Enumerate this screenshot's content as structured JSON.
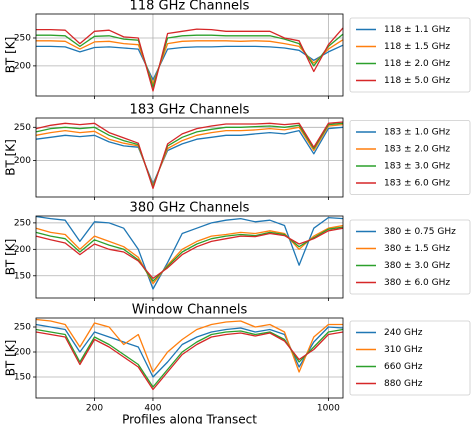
{
  "chart_data": [
    {
      "type": "line",
      "title": "118 GHz Channels",
      "ylabel": "BT [K]",
      "x": [
        0,
        50,
        100,
        150,
        200,
        250,
        300,
        350,
        400,
        450,
        500,
        550,
        600,
        650,
        700,
        750,
        800,
        850,
        900,
        950,
        1000,
        1050
      ],
      "xlim": [
        0,
        1050
      ],
      "ylim": [
        146,
        293
      ],
      "yticks": [
        200,
        250
      ],
      "grid": true,
      "series": [
        {
          "name": "118 ± 1.1 GHz",
          "color": "#1f77b4",
          "values": [
            235,
            235,
            234,
            225,
            233,
            234,
            232,
            230,
            175,
            230,
            233,
            234,
            234,
            235,
            235,
            235,
            234,
            232,
            228,
            210,
            225,
            237
          ]
        },
        {
          "name": "118 ± 1.5 GHz",
          "color": "#ff7f0e",
          "values": [
            245,
            245,
            244,
            230,
            243,
            244,
            240,
            238,
            168,
            240,
            244,
            245,
            245,
            245,
            244,
            245,
            244,
            240,
            235,
            205,
            230,
            247
          ]
        },
        {
          "name": "118 ± 2.0 GHz",
          "color": "#2ca02c",
          "values": [
            255,
            255,
            254,
            235,
            253,
            254,
            248,
            246,
            162,
            250,
            254,
            255,
            255,
            254,
            254,
            254,
            254,
            248,
            240,
            200,
            235,
            257
          ]
        },
        {
          "name": "118 ± 5.0 GHz",
          "color": "#d62728",
          "values": [
            265,
            265,
            264,
            240,
            262,
            264,
            252,
            250,
            155,
            258,
            262,
            266,
            265,
            262,
            262,
            262,
            262,
            250,
            245,
            190,
            238,
            268
          ]
        }
      ]
    },
    {
      "type": "line",
      "title": "183 GHz Channels",
      "ylabel": "BT [K]",
      "x": [
        0,
        50,
        100,
        150,
        200,
        250,
        300,
        350,
        400,
        450,
        500,
        550,
        600,
        650,
        700,
        750,
        800,
        850,
        900,
        950,
        1000,
        1050
      ],
      "xlim": [
        0,
        1050
      ],
      "ylim": [
        145,
        264
      ],
      "yticks": [
        200,
        250
      ],
      "grid": true,
      "series": [
        {
          "name": "183 ± 1.0 GHz",
          "color": "#1f77b4",
          "values": [
            232,
            235,
            238,
            236,
            238,
            228,
            222,
            220,
            165,
            215,
            225,
            232,
            235,
            238,
            238,
            240,
            242,
            240,
            245,
            210,
            248,
            250
          ]
        },
        {
          "name": "183 ± 2.0 GHz",
          "color": "#ff7f0e",
          "values": [
            238,
            242,
            245,
            242,
            244,
            232,
            226,
            222,
            162,
            218,
            230,
            238,
            242,
            245,
            245,
            246,
            248,
            246,
            250,
            215,
            252,
            254
          ]
        },
        {
          "name": "183 ± 3.0 GHz",
          "color": "#2ca02c",
          "values": [
            243,
            248,
            250,
            248,
            250,
            238,
            230,
            224,
            160,
            222,
            235,
            243,
            247,
            250,
            250,
            251,
            252,
            250,
            253,
            218,
            254,
            256
          ]
        },
        {
          "name": "183 ± 6.0 GHz",
          "color": "#d62728",
          "values": [
            248,
            253,
            256,
            254,
            256,
            242,
            234,
            226,
            158,
            225,
            240,
            248,
            252,
            255,
            255,
            255,
            256,
            254,
            256,
            220,
            256,
            258
          ]
        }
      ]
    },
    {
      "type": "line",
      "title": "380 GHz Channels",
      "ylabel": "BT [K]",
      "x": [
        0,
        50,
        100,
        150,
        200,
        250,
        300,
        350,
        400,
        450,
        500,
        550,
        600,
        650,
        700,
        750,
        800,
        850,
        900,
        950,
        1000,
        1050
      ],
      "xlim": [
        0,
        1050
      ],
      "ylim": [
        108,
        263
      ],
      "yticks": [
        150,
        200,
        250
      ],
      "grid": true,
      "series": [
        {
          "name": "380 ± 0.75 GHz",
          "color": "#1f77b4",
          "values": [
            262,
            258,
            255,
            215,
            252,
            250,
            240,
            200,
            125,
            175,
            230,
            240,
            250,
            255,
            258,
            252,
            255,
            245,
            170,
            240,
            260,
            258
          ]
        },
        {
          "name": "380 ± 1.5 GHz",
          "color": "#ff7f0e",
          "values": [
            240,
            232,
            228,
            200,
            225,
            215,
            205,
            185,
            135,
            170,
            200,
            215,
            225,
            228,
            232,
            230,
            235,
            230,
            200,
            225,
            240,
            245
          ]
        },
        {
          "name": "380 ± 3.0 GHz",
          "color": "#2ca02c",
          "values": [
            232,
            225,
            220,
            195,
            218,
            208,
            200,
            180,
            140,
            168,
            195,
            210,
            220,
            225,
            228,
            226,
            232,
            228,
            205,
            222,
            238,
            242
          ]
        },
        {
          "name": "380 ± 6.0 GHz",
          "color": "#d62728",
          "values": [
            225,
            218,
            212,
            190,
            210,
            200,
            195,
            178,
            145,
            165,
            190,
            205,
            215,
            220,
            225,
            224,
            230,
            226,
            210,
            220,
            235,
            240
          ]
        }
      ]
    },
    {
      "type": "line",
      "title": "Window Channels",
      "ylabel": "BT [K]",
      "xlabel": "Profiles along Transect",
      "x": [
        0,
        50,
        100,
        150,
        200,
        250,
        300,
        350,
        400,
        450,
        500,
        550,
        600,
        650,
        700,
        750,
        800,
        850,
        900,
        950,
        1000,
        1050
      ],
      "xlim": [
        0,
        1050
      ],
      "xticks": [
        200,
        400,
        1000
      ],
      "ylim": [
        108,
        268
      ],
      "yticks": [
        150,
        200,
        250
      ],
      "grid": true,
      "series": [
        {
          "name": "240 GHz",
          "color": "#1f77b4",
          "values": [
            255,
            250,
            245,
            200,
            240,
            230,
            220,
            210,
            150,
            180,
            215,
            230,
            240,
            245,
            248,
            240,
            245,
            235,
            170,
            220,
            250,
            248
          ]
        },
        {
          "name": "310 GHz",
          "color": "#ff7f0e",
          "values": [
            265,
            262,
            255,
            210,
            258,
            250,
            215,
            235,
            160,
            200,
            225,
            245,
            255,
            260,
            262,
            250,
            255,
            240,
            160,
            230,
            255,
            255
          ]
        },
        {
          "name": "660 GHz",
          "color": "#2ca02c",
          "values": [
            245,
            240,
            235,
            180,
            230,
            215,
            195,
            175,
            130,
            165,
            200,
            220,
            235,
            240,
            242,
            235,
            240,
            225,
            180,
            210,
            240,
            245
          ]
        },
        {
          "name": "880 GHz",
          "color": "#d62728",
          "values": [
            240,
            235,
            230,
            175,
            225,
            210,
            190,
            170,
            125,
            160,
            195,
            215,
            230,
            235,
            238,
            232,
            238,
            222,
            185,
            205,
            235,
            240
          ]
        }
      ]
    }
  ]
}
